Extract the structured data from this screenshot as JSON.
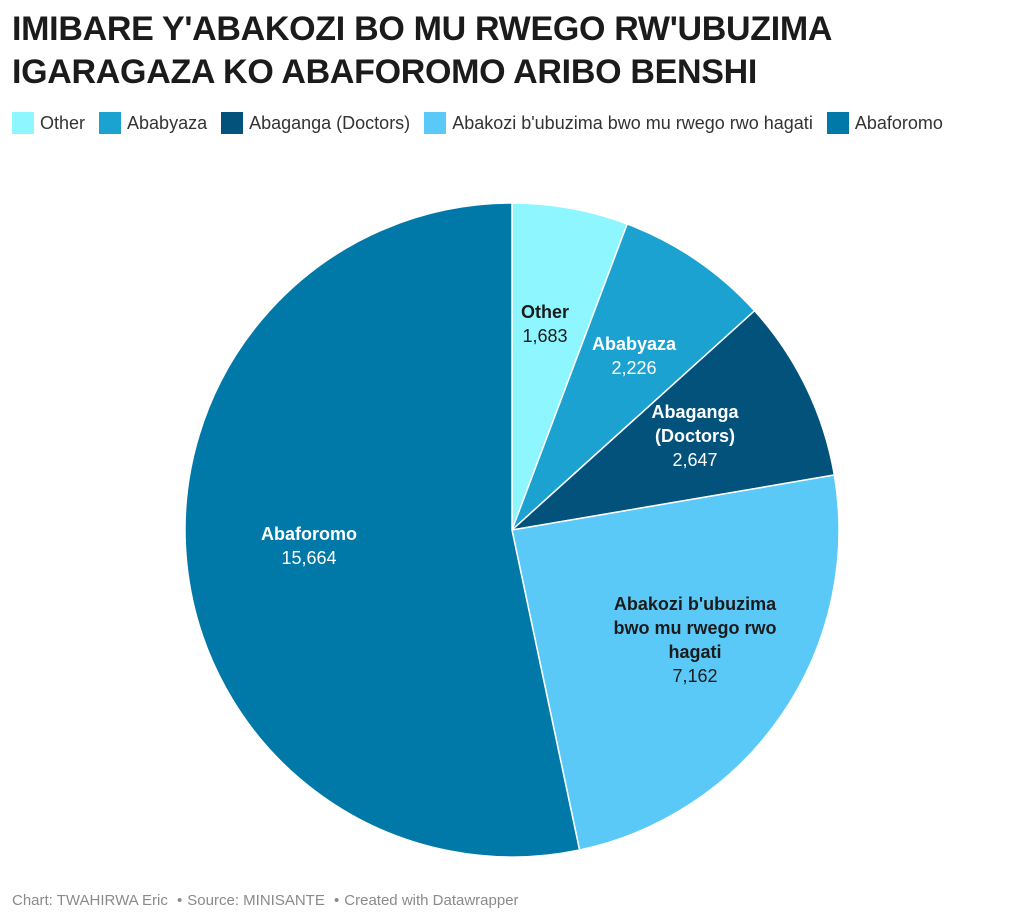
{
  "title_lines": [
    "IMIBARE Y'ABAKOZI BO MU RWEGO RW'UBUZIMA",
    "IGARAGAZA KO ABAFOROMO ARIBO BENSHI"
  ],
  "footer": {
    "chart_by": "Chart: TWAHIRWA Eric",
    "source": "Source: MINISANTE",
    "created_with": "Created with Datawrapper",
    "separator": "•"
  },
  "chart_data": {
    "type": "pie",
    "title": "IMIBARE Y'ABAKOZI BO MU RWEGO RW'UBUZIMA IGARAGAZA KO ABAFOROMO ARIBO BENSHI",
    "legend_placement": "top-left",
    "slices": [
      {
        "name": "Other",
        "value": 1683,
        "value_label": "1,683",
        "label_lines": [
          "Other"
        ],
        "color": "#8ef6ff",
        "label_color": "#1b1b1b"
      },
      {
        "name": "Ababyaza",
        "value": 2226,
        "value_label": "2,226",
        "label_lines": [
          "Ababyaza"
        ],
        "color": "#1ba2d1",
        "label_color": "#ffffff"
      },
      {
        "name": "Abaganga (Doctors)",
        "value": 2647,
        "value_label": "2,647",
        "label_lines": [
          "Abaganga",
          "(Doctors)"
        ],
        "color": "#02527c",
        "label_color": "#ffffff"
      },
      {
        "name": "Abakozi b'ubuzima bwo mu rwego rwo hagati",
        "value": 7162,
        "value_label": "7,162",
        "label_lines": [
          "Abakozi b'ubuzima",
          "bwo mu rwego rwo",
          "hagati"
        ],
        "color": "#5bc9f7",
        "label_color": "#1b1b1b"
      },
      {
        "name": "Abaforomo",
        "value": 15664,
        "value_label": "15,664",
        "label_lines": [
          "Abaforomo"
        ],
        "color": "#0179a8",
        "label_color": "#ffffff"
      }
    ]
  }
}
